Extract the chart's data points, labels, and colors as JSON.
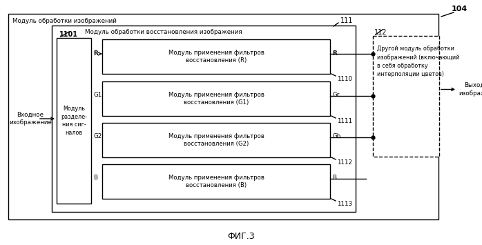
{
  "title": "ФИГ.3",
  "bg_color": "#ffffff",
  "outer_box_label": "Модуль обработки изображений",
  "label_104": "104",
  "label_111": "111",
  "label_1101": "1101",
  "label_112": "112",
  "inner_box_label": "Модуль обработки восстановления изображения",
  "signal_box_label": "Модуль\nразделе-\nния сиг-\nналов",
  "dashed_box_label": "Другой модуль обработки\nизображений (включающий\nв себя обработку\nинтерполяции цветов)",
  "filter_boxes": [
    {
      "label": "Модуль применения фильтров\nвосстановления (R)",
      "num": "1110",
      "in_label": "R",
      "out_label": "R"
    },
    {
      "label": "Модуль применения фильтров\nвосстановления (G1)",
      "num": "1111",
      "in_label": "G1",
      "out_label": "Gr"
    },
    {
      "label": "Модуль применения фильтров\nвосстановления (G2)",
      "num": "1112",
      "in_label": "G2",
      "out_label": "Gb"
    },
    {
      "label": "Модуль применения фильтров\nвосстановления (B)",
      "num": "1113",
      "in_label": "B",
      "out_label": "B"
    }
  ],
  "input_label": "Входное\nизображение",
  "output_label": "Выходное\nизображение"
}
